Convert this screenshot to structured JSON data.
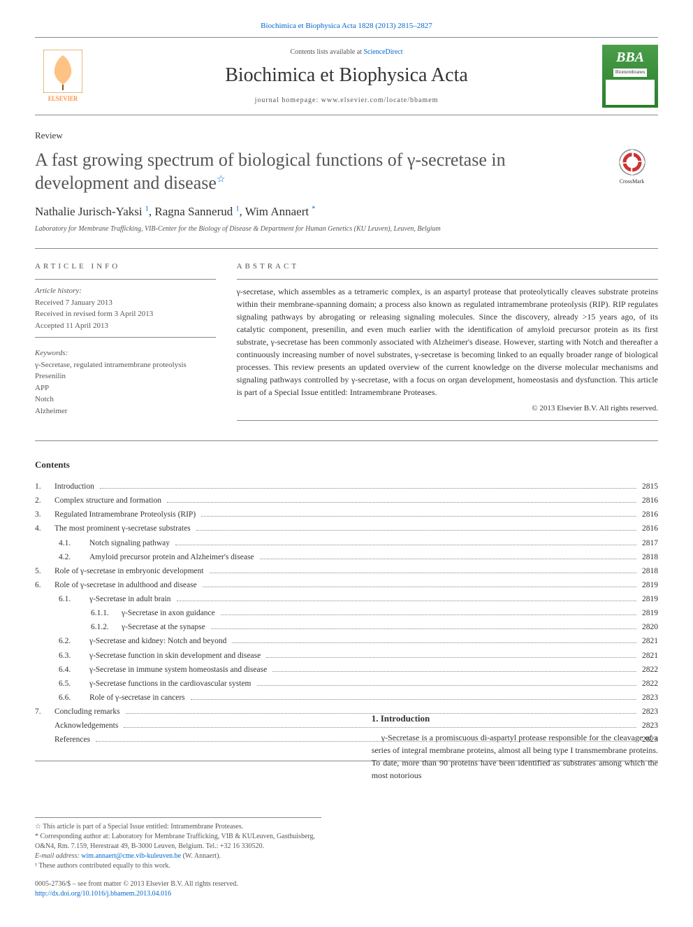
{
  "journal_ref": "Biochimica et Biophysica Acta 1828 (2013) 2815–2827",
  "header": {
    "contents_prefix": "Contents lists available at ",
    "contents_link": "ScienceDirect",
    "journal_title": "Biochimica et Biophysica Acta",
    "homepage_label": "journal homepage: www.elsevier.com/locate/bbamem",
    "elsevier_label": "ELSEVIER",
    "bba_label": "BBA",
    "bba_sub": "Biomembranes"
  },
  "article": {
    "type": "Review",
    "title": "A fast growing spectrum of biological functions of γ-secretase in development and disease",
    "title_star": "☆",
    "crossmark": "CrossMark",
    "authors_html": "Nathalie Jurisch-Yaksi <sup>1</sup>, Ragna Sannerud <sup>1</sup>, Wim Annaert <sup>*</sup>",
    "affiliation": "Laboratory for Membrane Trafficking, VIB-Center for the Biology of Disease & Department for Human Genetics (KU Leuven), Leuven, Belgium"
  },
  "info": {
    "heading": "ARTICLE INFO",
    "history_label": "Article history:",
    "received": "Received 7 January 2013",
    "revised": "Received in revised form 3 April 2013",
    "accepted": "Accepted 11 April 2013",
    "keywords_label": "Keywords:",
    "keywords": "γ-Secretase, regulated intramembrane proteolysis\nPresenilin\nAPP\nNotch\nAlzheimer"
  },
  "abstract": {
    "heading": "ABSTRACT",
    "text": "γ-secretase, which assembles as a tetrameric complex, is an aspartyl protease that proteolytically cleaves substrate proteins within their membrane-spanning domain; a process also known as regulated intramembrane proteolysis (RIP). RIP regulates signaling pathways by abrogating or releasing signaling molecules. Since the discovery, already >15 years ago, of its catalytic component, presenilin, and even much earlier with the identification of amyloid precursor protein as its first substrate, γ-secretase has been commonly associated with Alzheimer's disease. However, starting with Notch and thereafter a continuously increasing number of novel substrates, γ-secretase is becoming linked to an equally broader range of biological processes. This review presents an updated overview of the current knowledge on the diverse molecular mechanisms and signaling pathways controlled by γ-secretase, with a focus on organ development, homeostasis and dysfunction. This article is part of a Special Issue entitled: Intramembrane Proteases.",
    "copyright": "© 2013 Elsevier B.V. All rights reserved."
  },
  "contents": {
    "title": "Contents",
    "items": [
      {
        "num": "1.",
        "label": "Introduction",
        "page": "2815",
        "indent": 0
      },
      {
        "num": "2.",
        "label": "Complex structure and formation",
        "page": "2816",
        "indent": 0
      },
      {
        "num": "3.",
        "label": "Regulated Intramembrane Proteolysis (RIP)",
        "page": "2816",
        "indent": 0
      },
      {
        "num": "4.",
        "label": "The most prominent γ-secretase substrates",
        "page": "2816",
        "indent": 0
      },
      {
        "num": "4.1.",
        "label": "Notch signaling pathway",
        "page": "2817",
        "indent": 1
      },
      {
        "num": "4.2.",
        "label": "Amyloid precursor protein and Alzheimer's disease",
        "page": "2818",
        "indent": 1
      },
      {
        "num": "5.",
        "label": "Role of γ-secretase in embryonic development",
        "page": "2818",
        "indent": 0
      },
      {
        "num": "6.",
        "label": "Role of γ-secretase in adulthood and disease",
        "page": "2819",
        "indent": 0
      },
      {
        "num": "6.1.",
        "label": "γ-Secretase in adult brain",
        "page": "2819",
        "indent": 1
      },
      {
        "num": "6.1.1.",
        "label": "γ-Secretase in axon guidance",
        "page": "2819",
        "indent": 2
      },
      {
        "num": "6.1.2.",
        "label": "γ-Secretase at the synapse",
        "page": "2820",
        "indent": 2
      },
      {
        "num": "6.2.",
        "label": "γ-Secretase and kidney: Notch and beyond",
        "page": "2821",
        "indent": 1
      },
      {
        "num": "6.3.",
        "label": "γ-Secretase function in skin development and disease",
        "page": "2821",
        "indent": 1
      },
      {
        "num": "6.4.",
        "label": "γ-Secretase in immune system homeostasis and disease",
        "page": "2822",
        "indent": 1
      },
      {
        "num": "6.5.",
        "label": "γ-Secretase functions in the cardiovascular system",
        "page": "2822",
        "indent": 1
      },
      {
        "num": "6.6.",
        "label": "Role of γ-secretase in cancers",
        "page": "2823",
        "indent": 1
      },
      {
        "num": "7.",
        "label": "Concluding remarks",
        "page": "2823",
        "indent": 0
      },
      {
        "num": "",
        "label": "Acknowledgements",
        "page": "2823",
        "indent": 0
      },
      {
        "num": "",
        "label": "References",
        "page": "2823",
        "indent": 0
      }
    ]
  },
  "footnotes": {
    "star": "☆ This article is part of a Special Issue entitled: Intramembrane Proteases.",
    "corr": "* Corresponding author at: Laboratory for Membrane Trafficking, VIB & KULeuven, Gasthuisberg, O&N4, Rm. 7.159, Herestraat 49, B-3000 Leuven, Belgium. Tel.: +32 16 330520.",
    "email_label": "E-mail address: ",
    "email": "wim.annaert@cme.vib-kuleuven.be",
    "email_suffix": " (W. Annaert).",
    "equal": "¹ These authors contributed equally to this work."
  },
  "copyright_block": {
    "issn": "0005-2736/$ – see front matter © 2013 Elsevier B.V. All rights reserved.",
    "doi": "http://dx.doi.org/10.1016/j.bbamem.2013.04.016"
  },
  "intro": {
    "heading": "1. Introduction",
    "text": "γ-Secretase is a promiscuous di-aspartyl protease responsible for the cleavage of a series of integral membrane proteins, almost all being type I transmembrane proteins. To date, more than 90 proteins have been identified as substrates among which the most notorious"
  },
  "colors": {
    "link": "#0066cc",
    "text": "#333333",
    "muted": "#555555",
    "rule": "#888888",
    "elsevier_orange": "#ff6600",
    "bba_green": "#4a9e4a"
  }
}
